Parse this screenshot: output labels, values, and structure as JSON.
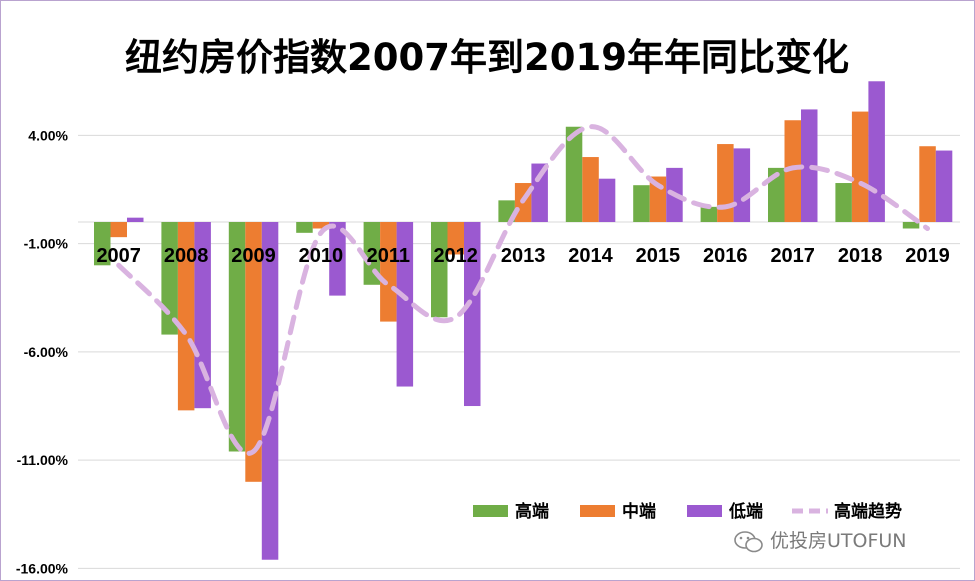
{
  "chart_data": {
    "type": "bar",
    "title": "纽约房价指数2007年到2019年年同比变化",
    "categories": [
      "2007",
      "2008",
      "2009",
      "2010",
      "2011",
      "2012",
      "2013",
      "2014",
      "2015",
      "2016",
      "2017",
      "2018",
      "2019"
    ],
    "series": [
      {
        "name": "高端",
        "color": "#70ad47",
        "values": [
          -2.0,
          -5.2,
          -10.6,
          -0.5,
          -2.9,
          -4.4,
          1.0,
          4.4,
          1.7,
          0.7,
          2.5,
          1.8,
          -0.3
        ]
      },
      {
        "name": "中端",
        "color": "#ed7d31",
        "values": [
          -0.7,
          -8.7,
          -12.0,
          -0.3,
          -4.6,
          -1.5,
          1.8,
          3.0,
          2.1,
          3.6,
          4.7,
          5.1,
          3.5
        ]
      },
      {
        "name": "低端",
        "color": "#9b59d0",
        "values": [
          0.2,
          -8.6,
          -15.6,
          -3.4,
          -7.6,
          -8.5,
          2.7,
          2.0,
          2.5,
          3.4,
          5.2,
          6.5,
          3.3
        ]
      }
    ],
    "trend": {
      "name": "高端趋势",
      "color": "#d9b3e0",
      "source_series": "高端"
    },
    "y_ticks": [
      "4.00%",
      "-1.00%",
      "-6.00%",
      "-11.00%",
      "-16.00%"
    ],
    "y_tick_values": [
      4,
      -1,
      -6,
      -11,
      -16
    ],
    "ylim": [
      -16,
      6.7
    ],
    "grid": true,
    "legend_position": "bottom-right"
  },
  "watermark": {
    "text": "优投房UTOFUN",
    "icon": "wechat-icon"
  }
}
